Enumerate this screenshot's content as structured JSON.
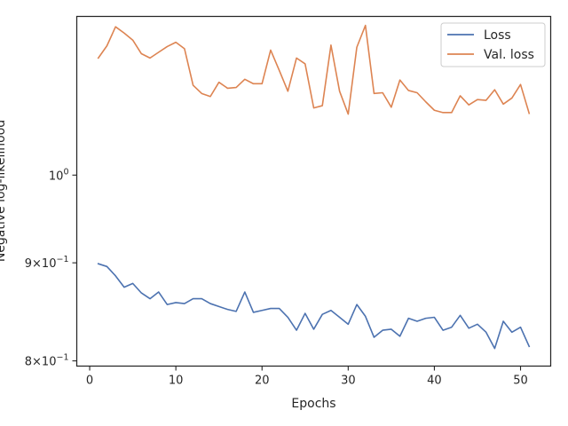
{
  "chart_data": {
    "type": "line",
    "xlabel": "Epochs",
    "ylabel": "Negative log-likelihood",
    "y_scale": "log",
    "xlim": [
      -1.5,
      53.5
    ],
    "ylim": [
      0.795,
      1.21
    ],
    "x_ticks": [
      0,
      10,
      20,
      30,
      40,
      50
    ],
    "y_ticks": [
      {
        "value": 1.0,
        "base": "10",
        "exp": "0",
        "coef": ""
      },
      {
        "value": 0.9,
        "base": "10",
        "exp": "−1",
        "coef": "9×"
      },
      {
        "value": 0.8,
        "base": "10",
        "exp": "−1",
        "coef": "8×"
      }
    ],
    "legend": {
      "position": "top-right"
    },
    "grid": false,
    "x": [
      1,
      2,
      3,
      4,
      5,
      6,
      7,
      8,
      9,
      10,
      11,
      12,
      13,
      14,
      15,
      16,
      17,
      18,
      19,
      20,
      21,
      22,
      23,
      24,
      25,
      26,
      27,
      28,
      29,
      30,
      31,
      32,
      33,
      34,
      35,
      36,
      37,
      38,
      39,
      40,
      41,
      42,
      43,
      44,
      45,
      46,
      47,
      48,
      49,
      50,
      51
    ],
    "series": [
      {
        "name": "Loss",
        "color": "#4c72b0",
        "values": [
          0.899,
          0.896,
          0.886,
          0.874,
          0.878,
          0.868,
          0.862,
          0.869,
          0.856,
          0.858,
          0.857,
          0.862,
          0.862,
          0.857,
          0.854,
          0.851,
          0.849,
          0.869,
          0.848,
          0.85,
          0.852,
          0.852,
          0.843,
          0.83,
          0.847,
          0.831,
          0.846,
          0.85,
          0.843,
          0.836,
          0.856,
          0.844,
          0.823,
          0.83,
          0.831,
          0.824,
          0.842,
          0.839,
          0.842,
          0.843,
          0.83,
          0.833,
          0.845,
          0.832,
          0.836,
          0.828,
          0.812,
          0.839,
          0.828,
          0.833,
          0.814
        ]
      },
      {
        "name": "Val. loss",
        "color": "#dd8452",
        "values": [
          1.151,
          1.168,
          1.195,
          1.186,
          1.176,
          1.157,
          1.151,
          1.159,
          1.167,
          1.173,
          1.164,
          1.114,
          1.103,
          1.099,
          1.118,
          1.11,
          1.111,
          1.122,
          1.116,
          1.116,
          1.162,
          1.134,
          1.106,
          1.151,
          1.143,
          1.084,
          1.087,
          1.169,
          1.106,
          1.076,
          1.166,
          1.197,
          1.103,
          1.104,
          1.085,
          1.121,
          1.107,
          1.104,
          1.092,
          1.081,
          1.078,
          1.078,
          1.1,
          1.088,
          1.095,
          1.094,
          1.108,
          1.089,
          1.097,
          1.115,
          1.077
        ]
      }
    ]
  }
}
